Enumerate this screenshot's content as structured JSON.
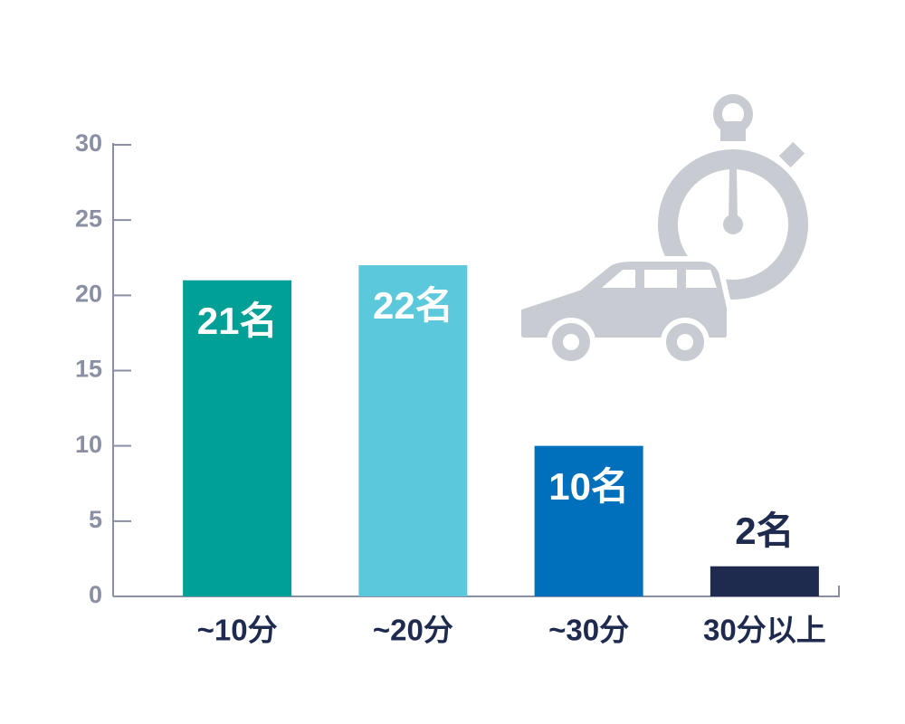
{
  "chart_data": {
    "type": "bar",
    "categories": [
      "~10分",
      "~20分",
      "~30分",
      "30分以上"
    ],
    "values": [
      21,
      22,
      10,
      2
    ],
    "value_labels": [
      "21名",
      "22名",
      "10名",
      "2名"
    ],
    "colors": [
      "#00a096",
      "#5bc8dc",
      "#0070bc",
      "#1e2b4e"
    ],
    "ylim": [
      0,
      30
    ],
    "yticks": [
      0,
      5,
      10,
      15,
      20,
      25,
      30
    ],
    "grid": false
  }
}
